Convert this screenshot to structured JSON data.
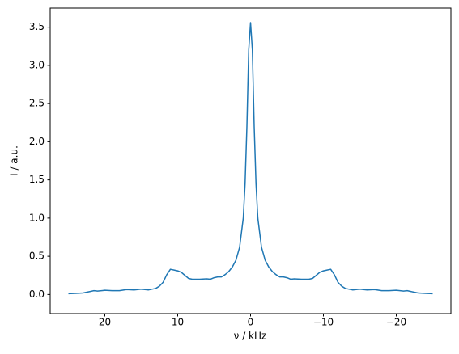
{
  "chart_data": {
    "type": "line",
    "x_label": "ν / kHz",
    "y_label": "I / a.u.",
    "x": [
      25,
      24,
      23,
      22,
      21.5,
      21,
      20,
      19,
      18,
      17,
      16,
      15,
      14,
      13,
      12.5,
      12,
      11.5,
      11,
      10.5,
      10,
      9.5,
      9,
      8.5,
      8,
      7,
      6,
      5.5,
      5,
      4.5,
      4,
      3.5,
      3,
      2.5,
      2,
      1.5,
      1,
      0.75,
      0.5,
      0.25,
      0,
      -0.25,
      -0.5,
      -0.75,
      -1,
      -1.5,
      -2,
      -2.5,
      -3,
      -3.5,
      -4,
      -4.5,
      -5,
      -5.5,
      -6,
      -7,
      -8,
      -8.5,
      -9,
      -9.5,
      -10,
      -10.5,
      -11,
      -11.5,
      -12,
      -12.5,
      -13,
      -14,
      -15,
      -16,
      -17,
      -18,
      -19,
      -20,
      -21,
      -21.5,
      -22,
      -23,
      -24,
      -25
    ],
    "series": [
      {
        "color": "#1f77b4",
        "values": [
          0.01,
          0.015,
          0.02,
          0.04,
          0.05,
          0.045,
          0.055,
          0.05,
          0.05,
          0.065,
          0.06,
          0.07,
          0.06,
          0.08,
          0.11,
          0.16,
          0.26,
          0.33,
          0.32,
          0.31,
          0.29,
          0.25,
          0.21,
          0.2,
          0.2,
          0.205,
          0.2,
          0.22,
          0.23,
          0.23,
          0.26,
          0.3,
          0.36,
          0.45,
          0.62,
          1.0,
          1.45,
          2.2,
          3.2,
          3.56,
          3.2,
          2.2,
          1.45,
          1.0,
          0.62,
          0.45,
          0.36,
          0.3,
          0.26,
          0.23,
          0.23,
          0.22,
          0.2,
          0.205,
          0.2,
          0.2,
          0.21,
          0.25,
          0.29,
          0.31,
          0.32,
          0.33,
          0.26,
          0.16,
          0.11,
          0.08,
          0.06,
          0.07,
          0.06,
          0.065,
          0.05,
          0.05,
          0.055,
          0.045,
          0.05,
          0.04,
          0.02,
          0.015,
          0.01
        ]
      }
    ],
    "xlim": [
      27.5,
      -27.5
    ],
    "xticks": [
      20,
      10,
      0,
      {
        "value": -10,
        "label": "−10"
      },
      {
        "value": -20,
        "label": "−20"
      }
    ],
    "ylim": [
      -0.25,
      3.75
    ],
    "yticks": [
      {
        "value": 0,
        "label": "0.0"
      },
      {
        "value": 0.5,
        "label": "0.5"
      },
      {
        "value": 1,
        "label": "1.0"
      },
      {
        "value": 1.5,
        "label": "1.5"
      },
      {
        "value": 2,
        "label": "2.0"
      },
      {
        "value": 2.5,
        "label": "2.5"
      },
      {
        "value": 3,
        "label": "3.0"
      },
      {
        "value": 3.5,
        "label": "3.5"
      }
    ]
  }
}
